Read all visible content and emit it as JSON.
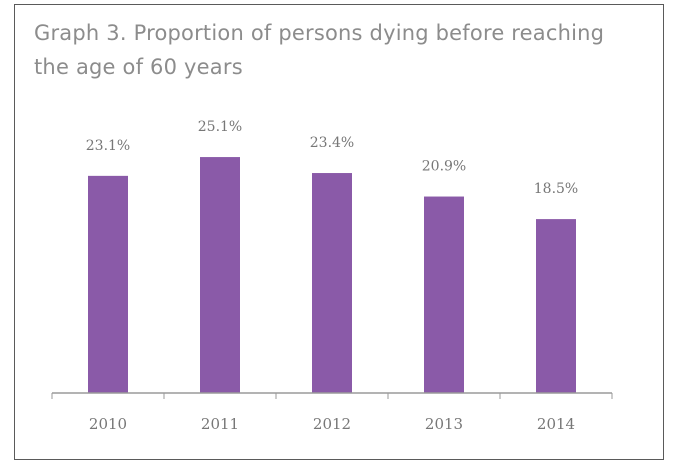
{
  "chart_data": {
    "type": "bar",
    "title": "Graph 3. Proportion of persons dying before reaching the age of 60 years",
    "categories": [
      "2010",
      "2011",
      "2012",
      "2013",
      "2014"
    ],
    "values": [
      23.1,
      25.1,
      23.4,
      20.9,
      18.5
    ],
    "data_labels": [
      "23.1%",
      "25.1%",
      "23.4%",
      "20.9%",
      "18.5%"
    ],
    "ylim": [
      0,
      28
    ],
    "grid": false,
    "legend": "none",
    "bar_color": "#8a5aa8"
  }
}
